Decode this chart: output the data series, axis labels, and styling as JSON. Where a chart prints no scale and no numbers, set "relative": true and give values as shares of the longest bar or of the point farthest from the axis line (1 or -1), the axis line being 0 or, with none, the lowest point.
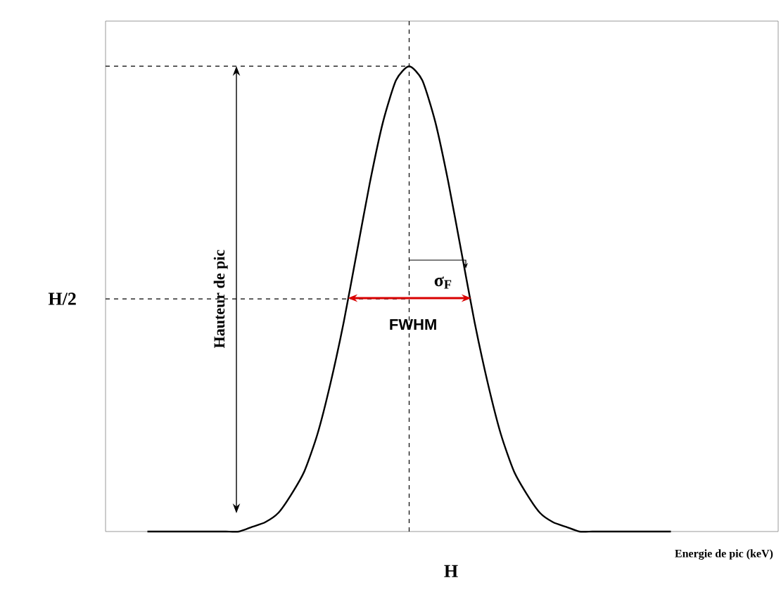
{
  "chart_data": {
    "type": "line",
    "relative": true,
    "xlabel": "Energie de pic (keV)",
    "categories": [
      null,
      null,
      null,
      null,
      null,
      null,
      null,
      null,
      null,
      null,
      null,
      null,
      null,
      null,
      null,
      null,
      null,
      null,
      null,
      null,
      null,
      null,
      null,
      null,
      null,
      null,
      null,
      null,
      null,
      null,
      null,
      null,
      null,
      null,
      null,
      null,
      null,
      null,
      null,
      null,
      null
    ],
    "series": [
      {
        "color": "#000000",
        "values": [
          0,
          0,
          0,
          0,
          0,
          0,
          0,
          0,
          0.01,
          0.02,
          0.04,
          0.08,
          0.13,
          0.21,
          0.32,
          0.45,
          0.6,
          0.75,
          0.88,
          0.97,
          1,
          0.97,
          0.88,
          0.75,
          0.6,
          0.45,
          0.32,
          0.21,
          0.13,
          0.08,
          0.04,
          0.02,
          0.01,
          0,
          0,
          0,
          0,
          0,
          0,
          0,
          0
        ]
      }
    ],
    "ref_lines": [
      {
        "axis": "y",
        "value": 1,
        "color": "#000000",
        "line_style": "dashed"
      },
      {
        "axis": "y",
        "value": 0.5,
        "color": "#000000",
        "line_style": "dashed"
      }
    ],
    "annotations": [
      "H/2",
      "H",
      "Hauteur de pic",
      "σ$_{F}$",
      "FWHM"
    ]
  }
}
